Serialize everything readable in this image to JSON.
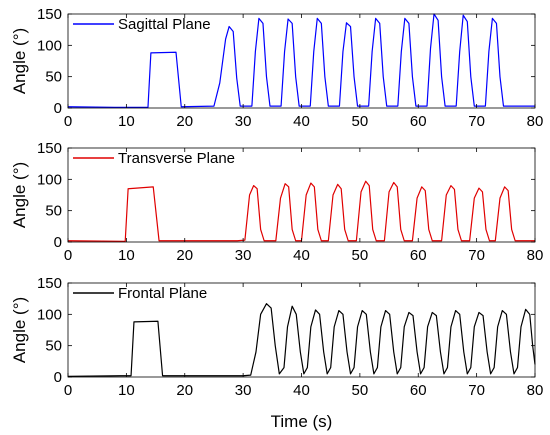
{
  "chart_data": [
    {
      "type": "line",
      "xlabel": "",
      "ylabel": "Angle (°)",
      "xlim": [
        0,
        80
      ],
      "ylim": [
        0,
        150
      ],
      "xticks": [
        "0",
        "10",
        "20",
        "30",
        "40",
        "50",
        "60",
        "70",
        "80"
      ],
      "yticks": [
        "0",
        "50",
        "100",
        "150"
      ],
      "legend_position": "top-left",
      "series": [
        {
          "name": "Sagittal Plane",
          "color": "#0000ff",
          "points": [
            [
              0,
              2
            ],
            [
              8,
              1
            ],
            [
              13.7,
              1
            ],
            [
              14.2,
              88
            ],
            [
              18.5,
              89
            ],
            [
              19.4,
              2
            ],
            [
              25,
              3
            ],
            [
              26,
              40
            ],
            [
              27,
              110
            ],
            [
              27.6,
              130
            ],
            [
              28.3,
              122
            ],
            [
              28.9,
              48
            ],
            [
              29.5,
              3
            ],
            [
              31.5,
              3
            ],
            [
              32.1,
              90
            ],
            [
              32.7,
              143
            ],
            [
              33.4,
              135
            ],
            [
              34,
              50
            ],
            [
              34.6,
              3
            ],
            [
              36.5,
              3
            ],
            [
              37.1,
              90
            ],
            [
              37.7,
              142
            ],
            [
              38.4,
              135
            ],
            [
              39,
              50
            ],
            [
              39.6,
              3
            ],
            [
              41.5,
              3
            ],
            [
              42.1,
              90
            ],
            [
              42.7,
              143
            ],
            [
              43.4,
              135
            ],
            [
              44,
              50
            ],
            [
              44.6,
              3
            ],
            [
              46.5,
              3
            ],
            [
              47.1,
              90
            ],
            [
              47.7,
              136
            ],
            [
              48.4,
              130
            ],
            [
              49,
              50
            ],
            [
              49.6,
              3
            ],
            [
              51.5,
              3
            ],
            [
              52.1,
              90
            ],
            [
              52.7,
              143
            ],
            [
              53.4,
              135
            ],
            [
              54,
              50
            ],
            [
              54.6,
              3
            ],
            [
              56.5,
              3
            ],
            [
              57.1,
              90
            ],
            [
              57.7,
              143
            ],
            [
              58.4,
              135
            ],
            [
              59,
              50
            ],
            [
              59.6,
              3
            ],
            [
              61.5,
              3
            ],
            [
              62.1,
              95
            ],
            [
              62.7,
              150
            ],
            [
              63.4,
              140
            ],
            [
              64,
              50
            ],
            [
              64.6,
              3
            ],
            [
              66.5,
              3
            ],
            [
              67.1,
              90
            ],
            [
              67.7,
              148
            ],
            [
              68.4,
              138
            ],
            [
              69,
              50
            ],
            [
              69.6,
              3
            ],
            [
              71.5,
              3
            ],
            [
              72.1,
              90
            ],
            [
              72.7,
              143
            ],
            [
              73.4,
              135
            ],
            [
              74,
              50
            ],
            [
              74.6,
              3
            ],
            [
              80,
              3
            ]
          ]
        },
        {
          "name": "Transverse Plane",
          "color": "#e00000",
          "points": [
            [
              0,
              2
            ],
            [
              9.8,
              1
            ],
            [
              10.3,
              85
            ],
            [
              14.6,
              88
            ],
            [
              15.6,
              2
            ],
            [
              29,
              2
            ],
            [
              30.3,
              3
            ],
            [
              31.1,
              75
            ],
            [
              31.8,
              90
            ],
            [
              32.4,
              85
            ],
            [
              33,
              20
            ],
            [
              33.6,
              2
            ],
            [
              35.6,
              2
            ],
            [
              36.4,
              70
            ],
            [
              37.2,
              93
            ],
            [
              37.8,
              88
            ],
            [
              38.4,
              20
            ],
            [
              39,
              2
            ],
            [
              40,
              2
            ],
            [
              40.8,
              75
            ],
            [
              41.6,
              94
            ],
            [
              42.2,
              88
            ],
            [
              42.8,
              20
            ],
            [
              43.4,
              2
            ],
            [
              44.6,
              2
            ],
            [
              45.4,
              75
            ],
            [
              46.2,
              92
            ],
            [
              46.8,
              85
            ],
            [
              47.4,
              20
            ],
            [
              48,
              2
            ],
            [
              49.4,
              2
            ],
            [
              50.2,
              80
            ],
            [
              51,
              97
            ],
            [
              51.6,
              90
            ],
            [
              52.2,
              20
            ],
            [
              52.8,
              2
            ],
            [
              54.2,
              2
            ],
            [
              55,
              80
            ],
            [
              55.8,
              95
            ],
            [
              56.4,
              88
            ],
            [
              57,
              20
            ],
            [
              57.6,
              2
            ],
            [
              59,
              2
            ],
            [
              59.8,
              70
            ],
            [
              60.6,
              88
            ],
            [
              61.2,
              82
            ],
            [
              61.8,
              20
            ],
            [
              62.4,
              2
            ],
            [
              64,
              2
            ],
            [
              64.8,
              75
            ],
            [
              65.6,
              90
            ],
            [
              66.2,
              84
            ],
            [
              66.8,
              20
            ],
            [
              67.4,
              2
            ],
            [
              68.8,
              2
            ],
            [
              69.6,
              70
            ],
            [
              70.4,
              86
            ],
            [
              71,
              80
            ],
            [
              71.6,
              20
            ],
            [
              72.2,
              2
            ],
            [
              73.2,
              2
            ],
            [
              74,
              70
            ],
            [
              74.8,
              88
            ],
            [
              75.4,
              82
            ],
            [
              76,
              20
            ],
            [
              76.6,
              2
            ],
            [
              80,
              2
            ]
          ]
        },
        {
          "name": "Frontal Plane",
          "color": "#000000",
          "points": [
            [
              0,
              1
            ],
            [
              9,
              2
            ],
            [
              10.8,
              2
            ],
            [
              11.3,
              88
            ],
            [
              15.4,
              89
            ],
            [
              16.2,
              2
            ],
            [
              30,
              2
            ],
            [
              31.3,
              3
            ],
            [
              32.2,
              40
            ],
            [
              33,
              100
            ],
            [
              34,
              117
            ],
            [
              34.8,
              110
            ],
            [
              35.5,
              50
            ],
            [
              36.2,
              5
            ],
            [
              37,
              15
            ],
            [
              37.6,
              80
            ],
            [
              38.4,
              113
            ],
            [
              39.1,
              100
            ],
            [
              39.8,
              40
            ],
            [
              40.4,
              5
            ],
            [
              41,
              15
            ],
            [
              41.6,
              80
            ],
            [
              42.4,
              107
            ],
            [
              43.1,
              100
            ],
            [
              43.8,
              40
            ],
            [
              44.4,
              5
            ],
            [
              45,
              15
            ],
            [
              45.6,
              80
            ],
            [
              46.4,
              106
            ],
            [
              47.1,
              100
            ],
            [
              47.8,
              40
            ],
            [
              48.4,
              5
            ],
            [
              49,
              15
            ],
            [
              49.6,
              80
            ],
            [
              50.4,
              106
            ],
            [
              51.1,
              100
            ],
            [
              51.8,
              40
            ],
            [
              52.4,
              5
            ],
            [
              53,
              15
            ],
            [
              53.6,
              80
            ],
            [
              54.4,
              106
            ],
            [
              55.1,
              100
            ],
            [
              55.8,
              40
            ],
            [
              56.4,
              5
            ],
            [
              57,
              15
            ],
            [
              57.6,
              80
            ],
            [
              58.4,
              103
            ],
            [
              59.1,
              98
            ],
            [
              59.8,
              40
            ],
            [
              60.4,
              5
            ],
            [
              61,
              15
            ],
            [
              61.6,
              80
            ],
            [
              62.4,
              103
            ],
            [
              63.1,
              98
            ],
            [
              63.8,
              40
            ],
            [
              64.4,
              5
            ],
            [
              65,
              15
            ],
            [
              65.6,
              80
            ],
            [
              66.4,
              106
            ],
            [
              67.1,
              100
            ],
            [
              67.8,
              40
            ],
            [
              68.4,
              5
            ],
            [
              69,
              15
            ],
            [
              69.6,
              80
            ],
            [
              70.4,
              103
            ],
            [
              71.1,
              98
            ],
            [
              71.8,
              40
            ],
            [
              72.4,
              5
            ],
            [
              73,
              15
            ],
            [
              73.6,
              80
            ],
            [
              74.4,
              106
            ],
            [
              75.1,
              100
            ],
            [
              75.8,
              40
            ],
            [
              76.4,
              5
            ],
            [
              77,
              15
            ],
            [
              77.6,
              80
            ],
            [
              78.4,
              108
            ],
            [
              79.1,
              100
            ],
            [
              79.6,
              50
            ],
            [
              80,
              20
            ]
          ]
        }
      ]
    },
    {
      "type": "axis",
      "xlabel": "Time (s)"
    }
  ]
}
